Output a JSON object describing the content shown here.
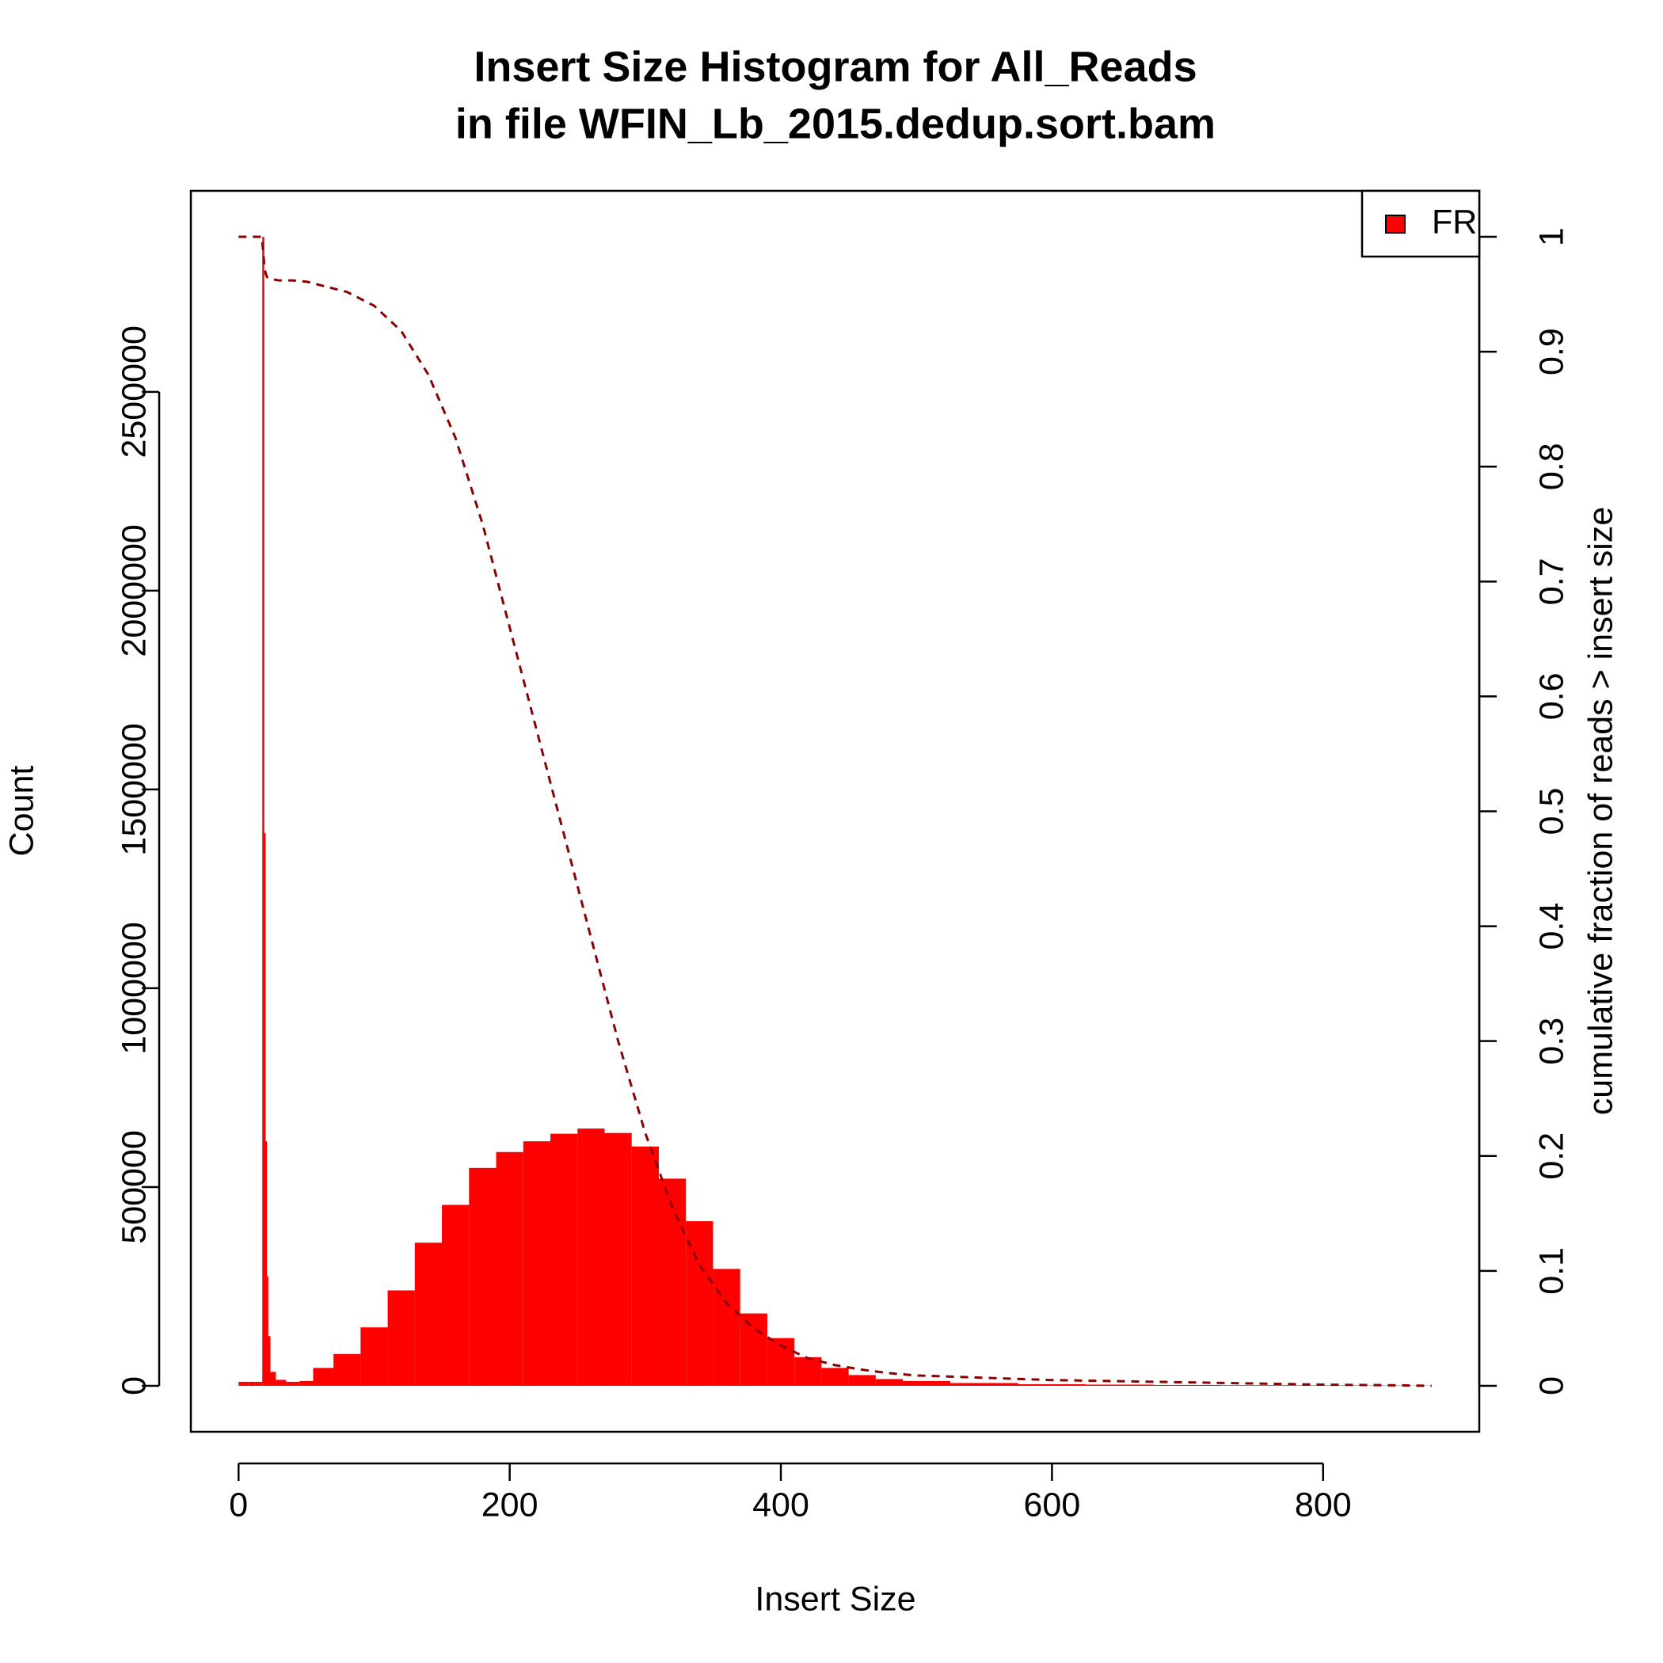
{
  "chart_data": {
    "type": "histogram-line",
    "title": "Insert Size Histogram for All_Reads",
    "subtitle": "in file WFIN_Lb_2015.dedup.sort.bam",
    "x_label": "Insert Size",
    "y_label": "Count",
    "y2_label": "cumulative fraction of reads > insert size",
    "x": [
      0,
      5,
      10,
      15,
      17,
      18,
      19,
      20,
      21,
      22,
      25,
      30,
      40,
      50,
      60,
      80,
      100,
      120,
      140,
      160,
      180,
      200,
      220,
      240,
      260,
      280,
      300,
      320,
      340,
      360,
      380,
      400,
      420,
      440,
      460,
      480,
      500,
      550,
      600,
      650,
      700,
      750,
      800,
      850,
      880
    ],
    "series": [
      {
        "name": "FR",
        "color": "#ff0000",
        "values": [
          10000,
          10000,
          10000,
          10000,
          10000,
          2890000,
          1390000,
          615000,
          275000,
          125000,
          35000,
          15000,
          10000,
          12000,
          45000,
          80000,
          147000,
          240000,
          360000,
          455000,
          548000,
          588000,
          615000,
          634000,
          647000,
          636000,
          602000,
          521000,
          414000,
          294000,
          182000,
          120000,
          72000,
          45000,
          27000,
          17000,
          12000,
          7000,
          4000,
          3000,
          2000,
          1500,
          1000,
          700,
          500
        ]
      },
      {
        "color": "#8b0000",
        "axis": "y2",
        "style": "dashed",
        "values": [
          1,
          1,
          1,
          1,
          1,
          0.99,
          0.975,
          0.968,
          0.965,
          0.964,
          0.963,
          0.962,
          0.962,
          0.961,
          0.958,
          0.952,
          0.94,
          0.918,
          0.88,
          0.825,
          0.75,
          0.66,
          0.57,
          0.48,
          0.39,
          0.3,
          0.22,
          0.155,
          0.105,
          0.072,
          0.05,
          0.035,
          0.024,
          0.018,
          0.014,
          0.011,
          0.009,
          0.007,
          0.005,
          0.004,
          0.003,
          0.002,
          0.001,
          0.0005,
          0
        ]
      }
    ],
    "xlim": [
      -35.2,
      915.2
    ],
    "xticks": [
      0,
      200,
      400,
      600,
      800
    ],
    "ylim": [
      -115600,
      3005600
    ],
    "yticks": [
      0,
      500000,
      1000000,
      1500000,
      2000000,
      2500000
    ],
    "y2lim": [
      -0.04,
      1.04
    ],
    "y2ticks": [
      0,
      0.1,
      0.2,
      0.3,
      0.4,
      0.5,
      0.6,
      0.7,
      0.8,
      0.9,
      1
    ],
    "legend": "top-right"
  }
}
